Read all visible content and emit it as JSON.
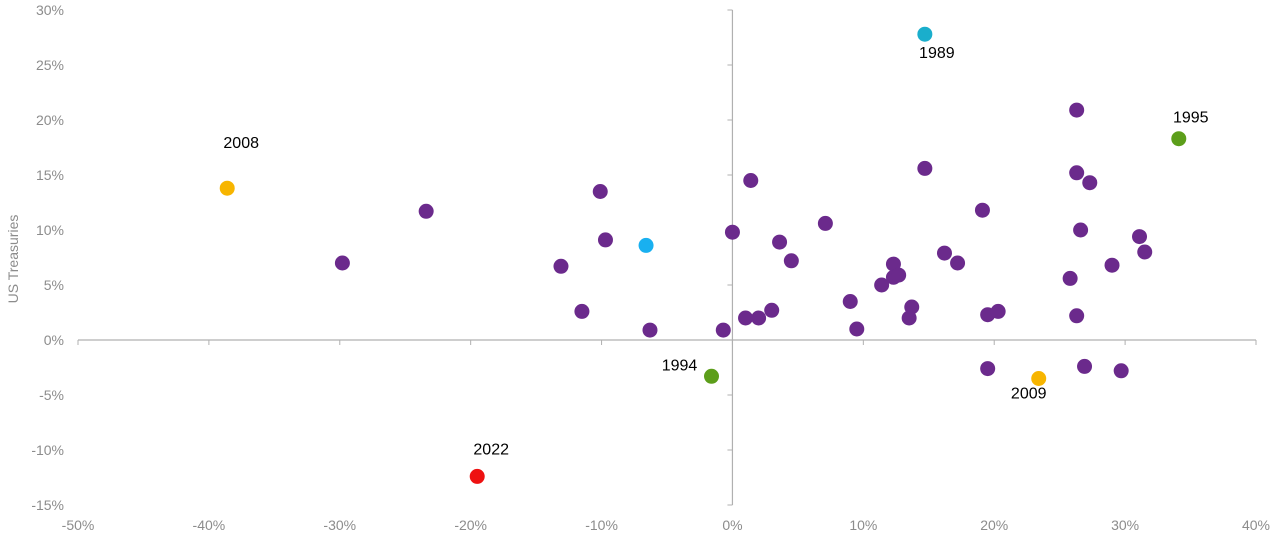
{
  "chart_data": {
    "type": "scatter",
    "title": "",
    "xlabel": "",
    "ylabel": "US Treasuries",
    "xlim": [
      -50,
      40
    ],
    "ylim": [
      -15,
      30
    ],
    "x_ticks": [
      -50,
      -40,
      -30,
      -20,
      -10,
      0,
      10,
      20,
      30,
      40
    ],
    "y_ticks": [
      -15,
      -10,
      -5,
      0,
      5,
      10,
      15,
      20,
      25,
      30
    ],
    "x_tick_labels": [
      "-50%",
      "-40%",
      "-30%",
      "-20%",
      "-10%",
      "0%",
      "10%",
      "20%",
      "30%",
      "40%"
    ],
    "y_tick_labels": [
      "-15%",
      "-10%",
      "-5%",
      "0%",
      "5%",
      "10%",
      "15%",
      "20%",
      "25%",
      "30%"
    ],
    "grid": false,
    "colors": {
      "default": "#6b2a8c",
      "orange": "#f7b500",
      "light_blue": "#19b0f0",
      "teal": "#1aaecc",
      "green": "#5c9e1a",
      "red": "#ee1111",
      "axis": "#b0b0b0"
    },
    "points": [
      {
        "x": -38.6,
        "y": 13.8,
        "color": "orange",
        "label": "2008"
      },
      {
        "x": 23.4,
        "y": -3.5,
        "color": "orange",
        "label": "2009"
      },
      {
        "x": -19.5,
        "y": -12.4,
        "color": "red",
        "label": "2022"
      },
      {
        "x": -1.6,
        "y": -3.3,
        "color": "green",
        "label": "1994"
      },
      {
        "x": 34.1,
        "y": 18.3,
        "color": "green",
        "label": "1995"
      },
      {
        "x": 14.7,
        "y": 27.8,
        "color": "teal",
        "label": "1989"
      },
      {
        "x": -6.6,
        "y": 8.6,
        "color": "light_blue",
        "label": ""
      },
      {
        "x": -29.8,
        "y": 7.0,
        "color": "default",
        "label": ""
      },
      {
        "x": -23.4,
        "y": 11.7,
        "color": "default",
        "label": ""
      },
      {
        "x": -13.1,
        "y": 6.7,
        "color": "default",
        "label": ""
      },
      {
        "x": -11.5,
        "y": 2.6,
        "color": "default",
        "label": ""
      },
      {
        "x": -10.1,
        "y": 13.5,
        "color": "default",
        "label": ""
      },
      {
        "x": -9.7,
        "y": 9.1,
        "color": "default",
        "label": ""
      },
      {
        "x": -6.3,
        "y": 0.9,
        "color": "default",
        "label": ""
      },
      {
        "x": -0.7,
        "y": 0.9,
        "color": "default",
        "label": ""
      },
      {
        "x": 0.0,
        "y": 9.8,
        "color": "default",
        "label": ""
      },
      {
        "x": 1.0,
        "y": 2.0,
        "color": "default",
        "label": ""
      },
      {
        "x": 1.4,
        "y": 14.5,
        "color": "default",
        "label": ""
      },
      {
        "x": 2.0,
        "y": 2.0,
        "color": "default",
        "label": ""
      },
      {
        "x": 3.0,
        "y": 2.7,
        "color": "default",
        "label": ""
      },
      {
        "x": 3.6,
        "y": 8.9,
        "color": "default",
        "label": ""
      },
      {
        "x": 4.5,
        "y": 7.2,
        "color": "default",
        "label": ""
      },
      {
        "x": 7.1,
        "y": 10.6,
        "color": "default",
        "label": ""
      },
      {
        "x": 9.0,
        "y": 3.5,
        "color": "default",
        "label": ""
      },
      {
        "x": 9.5,
        "y": 1.0,
        "color": "default",
        "label": ""
      },
      {
        "x": 11.4,
        "y": 5.0,
        "color": "default",
        "label": ""
      },
      {
        "x": 12.3,
        "y": 6.9,
        "color": "default",
        "label": ""
      },
      {
        "x": 12.3,
        "y": 5.7,
        "color": "default",
        "label": ""
      },
      {
        "x": 12.7,
        "y": 5.9,
        "color": "default",
        "label": ""
      },
      {
        "x": 13.5,
        "y": 2.0,
        "color": "default",
        "label": ""
      },
      {
        "x": 13.7,
        "y": 3.0,
        "color": "default",
        "label": ""
      },
      {
        "x": 14.7,
        "y": 15.6,
        "color": "default",
        "label": ""
      },
      {
        "x": 16.2,
        "y": 7.9,
        "color": "default",
        "label": ""
      },
      {
        "x": 17.2,
        "y": 7.0,
        "color": "default",
        "label": ""
      },
      {
        "x": 19.1,
        "y": 11.8,
        "color": "default",
        "label": ""
      },
      {
        "x": 19.5,
        "y": 2.3,
        "color": "default",
        "label": ""
      },
      {
        "x": 19.5,
        "y": -2.6,
        "color": "default",
        "label": ""
      },
      {
        "x": 20.3,
        "y": 2.6,
        "color": "default",
        "label": ""
      },
      {
        "x": 25.8,
        "y": 5.6,
        "color": "default",
        "label": ""
      },
      {
        "x": 26.3,
        "y": 20.9,
        "color": "default",
        "label": ""
      },
      {
        "x": 26.3,
        "y": 15.2,
        "color": "default",
        "label": ""
      },
      {
        "x": 26.3,
        "y": 2.2,
        "color": "default",
        "label": ""
      },
      {
        "x": 26.6,
        "y": 10.0,
        "color": "default",
        "label": ""
      },
      {
        "x": 26.9,
        "y": -2.4,
        "color": "default",
        "label": ""
      },
      {
        "x": 27.3,
        "y": 14.3,
        "color": "default",
        "label": ""
      },
      {
        "x": 29.0,
        "y": 6.8,
        "color": "default",
        "label": ""
      },
      {
        "x": 29.7,
        "y": -2.8,
        "color": "default",
        "label": ""
      },
      {
        "x": 31.1,
        "y": 9.4,
        "color": "default",
        "label": ""
      },
      {
        "x": 31.5,
        "y": 8.0,
        "color": "default",
        "label": ""
      }
    ]
  }
}
